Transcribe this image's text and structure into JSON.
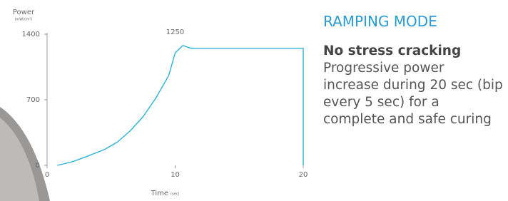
{
  "chart_data": {
    "type": "line",
    "y_label": "Power",
    "y_unit": "(mW/cm²)",
    "x_label": "Time",
    "x_unit": "(sec)",
    "annotation": "1250",
    "x": [
      0.8,
      2,
      3,
      4.5,
      5.5,
      6.5,
      7.5,
      8.5,
      9.5,
      10,
      10.6,
      11.2,
      20,
      20
    ],
    "series": [
      {
        "color": "#29b3d9",
        "values": [
          0,
          40,
          90,
          170,
          250,
          370,
          520,
          720,
          960,
          1200,
          1280,
          1250,
          1250,
          0
        ]
      }
    ],
    "xlim": [
      0,
      20
    ],
    "ylim": [
      0,
      1400
    ],
    "xticks": [
      0,
      10,
      20
    ],
    "yticks": [
      0,
      700,
      1400
    ]
  },
  "panel": {
    "title": "RAMPING MODE",
    "heading": "No stress cracking",
    "body": "Progressive power increase during 20 sec (bip every 5 sec) for a complete and safe curing"
  }
}
